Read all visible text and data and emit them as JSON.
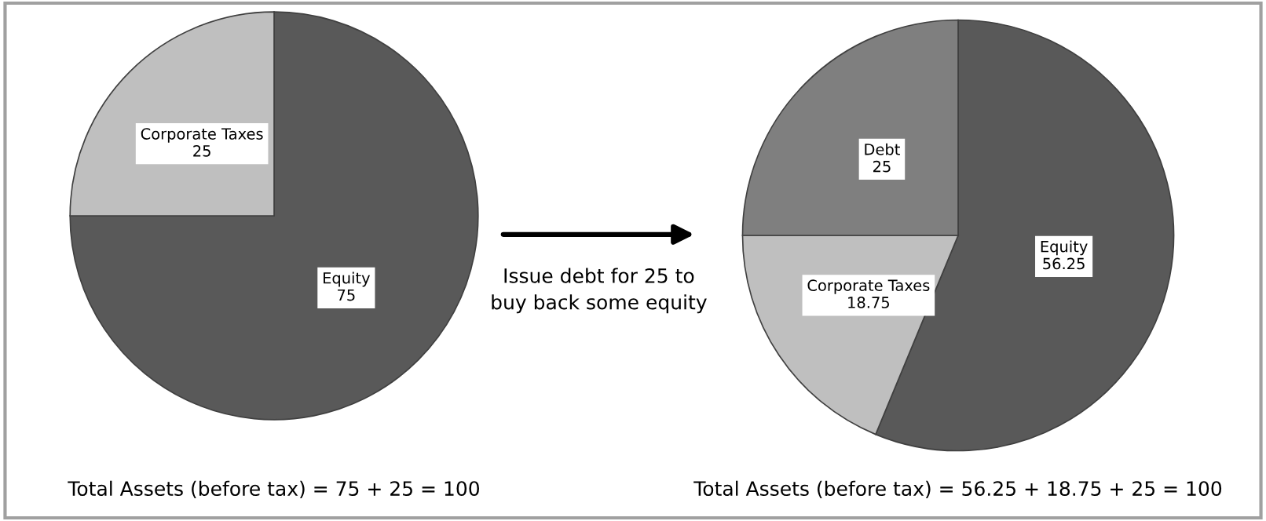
{
  "chart_data": [
    {
      "type": "pie",
      "categories": [
        "Equity",
        "Corporate Taxes"
      ],
      "values": [
        75,
        25
      ],
      "colors": [
        "#595959",
        "#bfbfbf"
      ],
      "data_labels": true,
      "annotations": [
        "Total Assets (before tax) = 75 + 25 = 100",
        "Issue debt for 25 to\nbuy back some equity"
      ]
    },
    {
      "type": "pie",
      "categories": [
        "Equity",
        "Corporate Taxes",
        "Debt"
      ],
      "values": [
        56.25,
        18.75,
        25
      ],
      "colors": [
        "#595959",
        "#bfbfbf",
        "#7f7f7f"
      ],
      "data_labels": true,
      "annotations": [
        "Total Assets (before tax) = 56.25 + 18.75 + 25 = 100"
      ]
    }
  ]
}
